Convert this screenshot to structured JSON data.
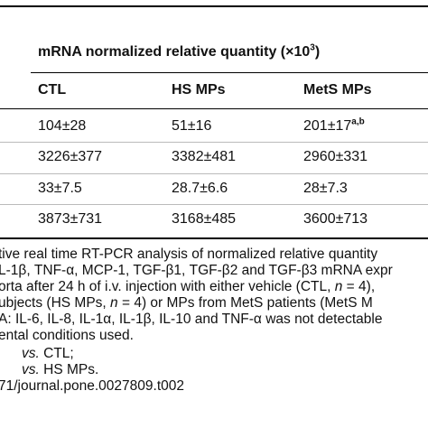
{
  "table": {
    "group_header": [
      {
        "text": "mRNA normalized relative quantity (×10"
      },
      {
        "text": "3",
        "sup": true
      },
      {
        "text": ")"
      }
    ],
    "columns": [
      "CTL",
      "HS MPs",
      "MetS MPs"
    ],
    "rows": [
      [
        "104±28",
        "51±16",
        [
          {
            "text": "201±17"
          },
          {
            "text": "a,b",
            "sup": true
          }
        ]
      ],
      [
        "3226±377",
        "3382±481",
        "2960±331"
      ],
      [
        "33±7.5",
        "28.7±6.6",
        "28±7.3"
      ],
      [
        "3873±731",
        "3168±485",
        "3600±713"
      ]
    ]
  },
  "footnote": [
    [
      {
        "text": "tive real time RT-PCR analysis of normalized relative quantity"
      }
    ],
    [
      {
        "text": "L-1β, TNF-α, MCP-1, TGF-β1, TGF-β2 and TGF-β3 mRNA expr"
      }
    ],
    [
      {
        "text": "orta after 24 h of i.v. injection with either vehicle (CTL, "
      },
      {
        "text": "n",
        "italic": true
      },
      {
        "text": " = 4),"
      }
    ],
    [
      {
        "text": "ubjects (HS MPs, "
      },
      {
        "text": "n",
        "italic": true
      },
      {
        "text": " = 4) or MPs from MetS patients (MetS M"
      }
    ],
    [
      {
        "text": "A: IL-6, IL-8, IL-1α, IL-1β, IL-10 and TNF-α was not detectable"
      }
    ],
    [
      {
        "text": "ental conditions used."
      }
    ],
    [
      {
        "text": "vs.",
        "italic": true
      },
      {
        "text": " CTL;"
      }
    ],
    [
      {
        "text": "vs.",
        "italic": true
      },
      {
        "text": " HS MPs."
      }
    ],
    [
      {
        "text": "71/journal.pone.0027809.t002"
      }
    ]
  ]
}
